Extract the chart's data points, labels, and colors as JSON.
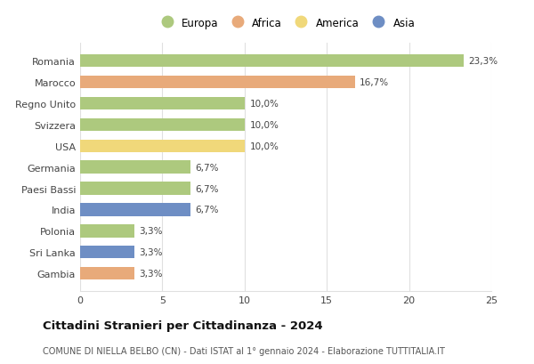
{
  "countries": [
    "Romania",
    "Marocco",
    "Regno Unito",
    "Svizzera",
    "USA",
    "Germania",
    "Paesi Bassi",
    "India",
    "Polonia",
    "Sri Lanka",
    "Gambia"
  ],
  "values": [
    23.3,
    16.7,
    10.0,
    10.0,
    10.0,
    6.7,
    6.7,
    6.7,
    3.3,
    3.3,
    3.3
  ],
  "labels": [
    "23,3%",
    "16,7%",
    "10,0%",
    "10,0%",
    "10,0%",
    "6,7%",
    "6,7%",
    "6,7%",
    "3,3%",
    "3,3%",
    "3,3%"
  ],
  "colors": [
    "#adc97e",
    "#e8aa7a",
    "#adc97e",
    "#adc97e",
    "#f0d87a",
    "#adc97e",
    "#adc97e",
    "#6e8ec4",
    "#adc97e",
    "#6e8ec4",
    "#e8aa7a"
  ],
  "legend_labels": [
    "Europa",
    "Africa",
    "America",
    "Asia"
  ],
  "legend_colors": [
    "#adc97e",
    "#e8aa7a",
    "#f0d87a",
    "#6e8ec4"
  ],
  "title": "Cittadini Stranieri per Cittadinanza - 2024",
  "subtitle": "COMUNE DI NIELLA BELBO (CN) - Dati ISTAT al 1° gennaio 2024 - Elaborazione TUTTITALIA.IT",
  "xlim": [
    0,
    25
  ],
  "xticks": [
    0,
    5,
    10,
    15,
    20,
    25
  ],
  "bg_color": "#ffffff",
  "plot_bg_color": "#ffffff",
  "grid_color": "#e0e0e0"
}
